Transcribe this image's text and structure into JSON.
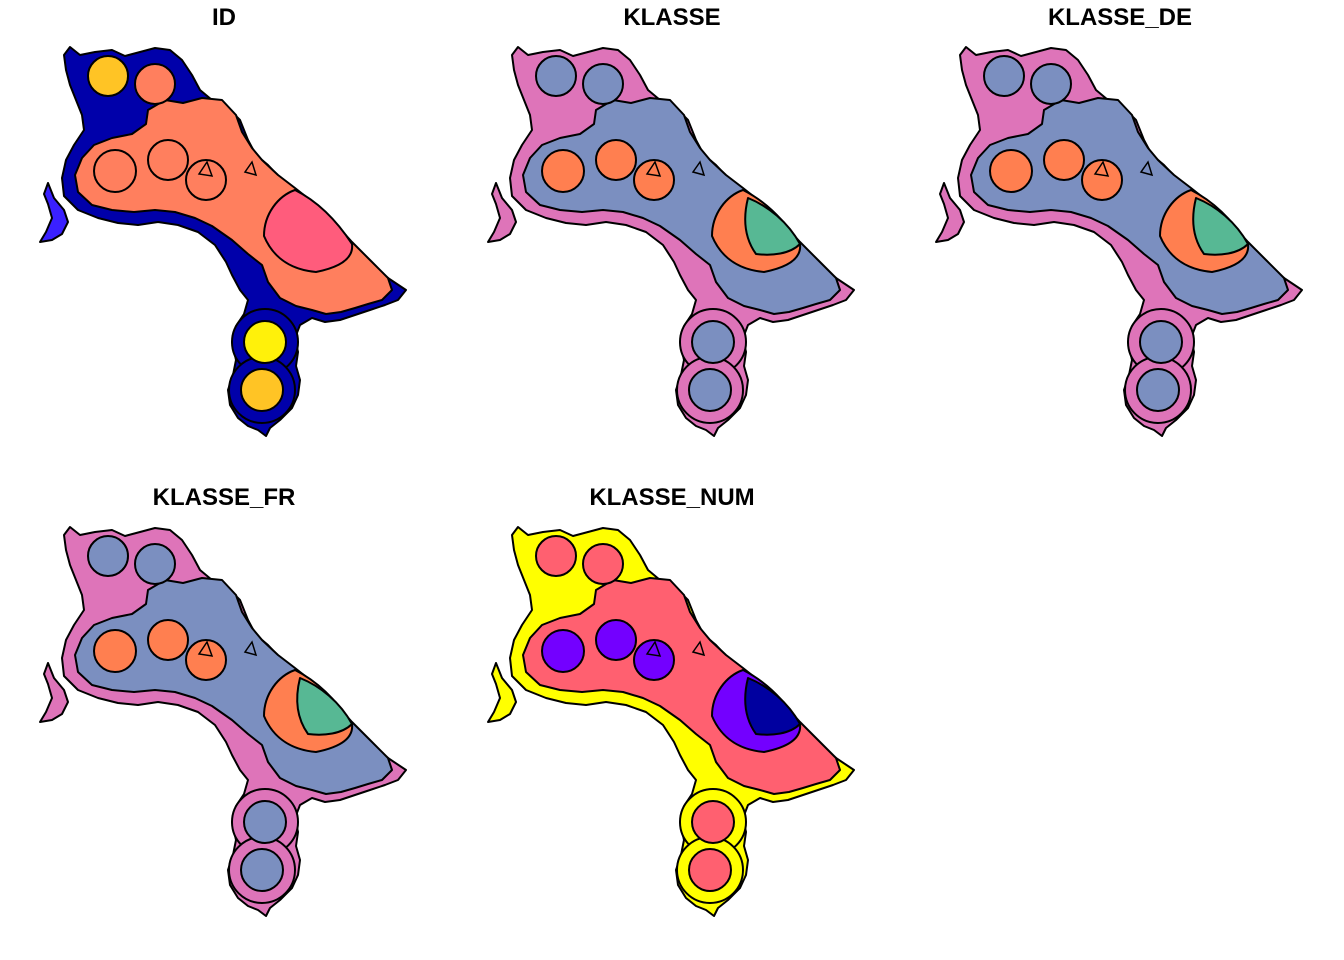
{
  "panels": [
    {
      "title": "ID",
      "colors": {
        "outer": "#0000AA",
        "islet": "#3A20FF",
        "main": "#FF7F5E",
        "crescent": "#FF5C7C",
        "circle_nw": "#FFC425",
        "circle_ne": "#FF7F5E",
        "circles_mid": "#FF7F5E",
        "circle_s1": "#FFF10A",
        "circle_s2": "#FFC425"
      }
    },
    {
      "title": "KLASSE",
      "colors": {
        "outer": "#DE74B9",
        "islet": "#DE74B9",
        "main": "#7B8FC0",
        "crescent": "#FF7F50",
        "inner_crescent": "#57B894",
        "circle_nw": "#7B8FC0",
        "circle_ne": "#7B8FC0",
        "circles_mid": "#FF7F50",
        "circle_s1": "#7B8FC0",
        "circle_s2": "#7B8FC0"
      }
    },
    {
      "title": "KLASSE_DE",
      "colors": {
        "outer": "#DE74B9",
        "islet": "#DE74B9",
        "main": "#7B8FC0",
        "crescent": "#FF7F50",
        "inner_crescent": "#57B894",
        "circle_nw": "#7B8FC0",
        "circle_ne": "#7B8FC0",
        "circles_mid": "#FF7F50",
        "circle_s1": "#7B8FC0",
        "circle_s2": "#7B8FC0"
      }
    },
    {
      "title": "KLASSE_FR",
      "colors": {
        "outer": "#DE74B9",
        "islet": "#DE74B9",
        "main": "#7B8FC0",
        "crescent": "#FF7F50",
        "inner_crescent": "#57B894",
        "circle_nw": "#7B8FC0",
        "circle_ne": "#7B8FC0",
        "circles_mid": "#FF7F50",
        "circle_s1": "#7B8FC0",
        "circle_s2": "#7B8FC0"
      }
    },
    {
      "title": "KLASSE_NUM",
      "colors": {
        "outer": "#FFFF00",
        "islet": "#FFFF00",
        "main": "#FF6070",
        "crescent": "#7300FF",
        "inner_crescent": "#0000A0",
        "circle_nw": "#FF6070",
        "circle_ne": "#FF6070",
        "circles_mid": "#7300FF",
        "circle_s1": "#FF6070",
        "circle_s2": "#FF6070"
      }
    }
  ]
}
